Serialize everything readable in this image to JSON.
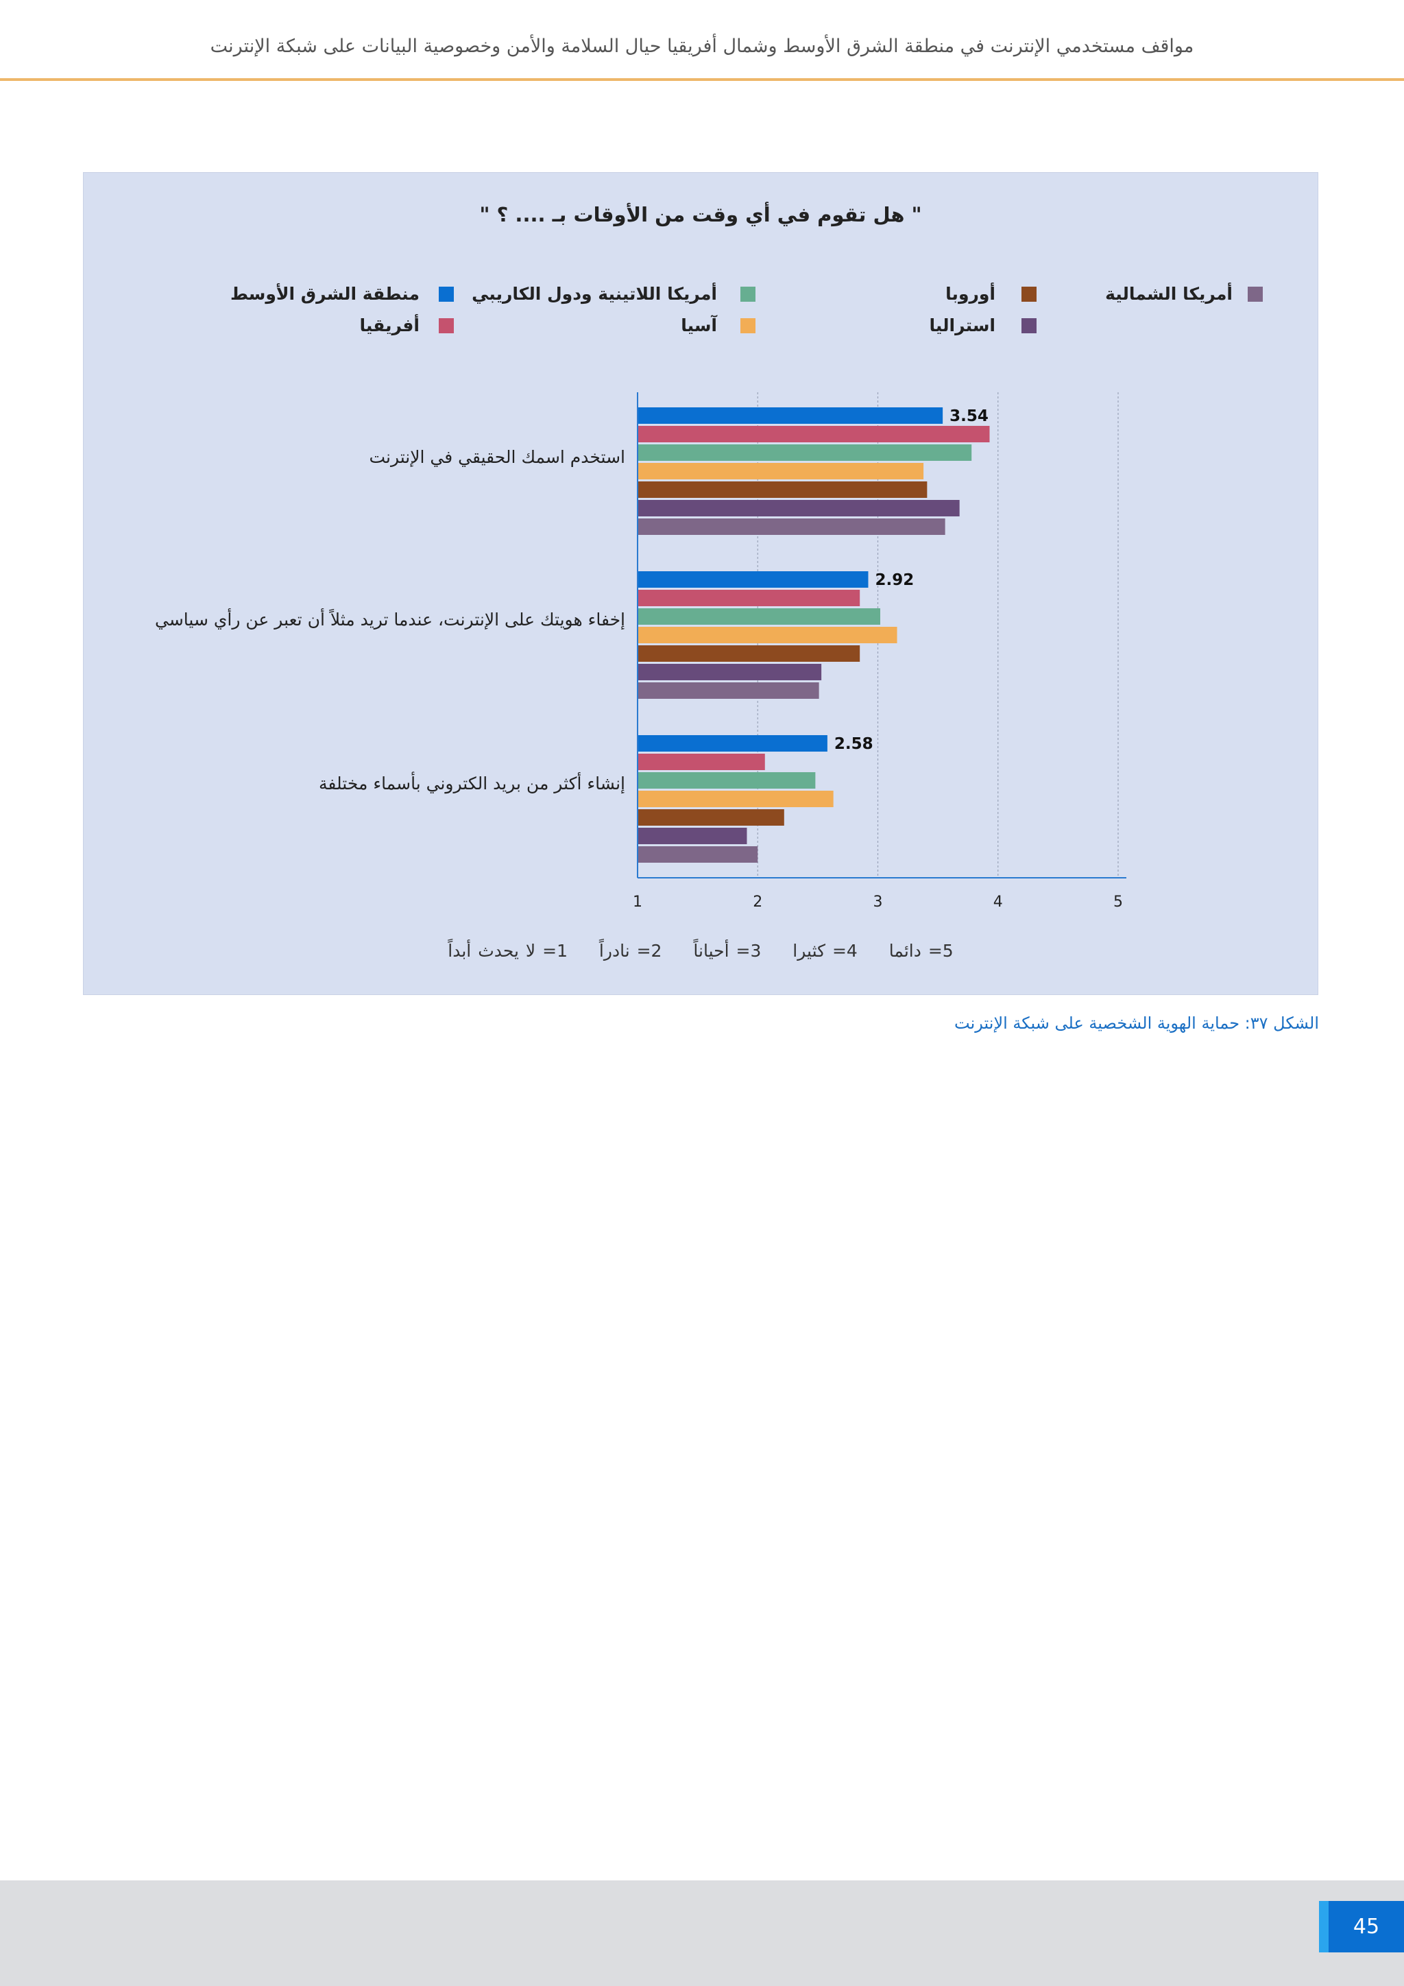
{
  "header": {
    "title": "مواقف مستخدمي الإنترنت في منطقة الشرق الأوسط وشمال أفريقيا حيال السلامة والأمن وخصوصية البيانات على شبكة الإنترنت"
  },
  "chart_data": {
    "type": "bar",
    "orientation": "horizontal",
    "title": "\" هل تقوم في أي وقت من الأوقات بـ .... ؟ \"",
    "categories": [
      "استخدم اسمك الحقيقي في الإنترنت",
      "إخفاء هويتك على الإنترنت، عندما تريد مثلاً أن تعبر عن رأي سياسي",
      "إنشاء أكثر من بريد الكتروني بأسماء مختلفة"
    ],
    "series": [
      {
        "name": "منطقة الشرق الأوسط",
        "color": "#0a6fd1",
        "values": [
          3.54,
          2.92,
          2.58
        ],
        "labels": [
          "3.54",
          "2.92",
          "2.58"
        ]
      },
      {
        "name": "أفريقيا",
        "color": "#c5526e",
        "values": [
          3.93,
          2.85,
          2.06
        ]
      },
      {
        "name": "أمريكا اللاتينية ودول الكاريبي",
        "color": "#67ae91",
        "values": [
          3.78,
          3.02,
          2.48
        ]
      },
      {
        "name": "آسيا",
        "color": "#f2ad55",
        "values": [
          3.38,
          3.16,
          2.63
        ]
      },
      {
        "name": "أوروبا",
        "color": "#8d4a1f",
        "values": [
          3.41,
          2.85,
          2.22
        ]
      },
      {
        "name": "استراليا",
        "color": "#674b7b",
        "values": [
          3.68,
          2.53,
          1.91
        ]
      },
      {
        "name": "أمريكا الشمالية",
        "color": "#7e6788",
        "values": [
          3.56,
          2.51,
          2.0
        ]
      }
    ],
    "xlim": [
      1,
      5
    ],
    "xticks": [
      "1",
      "2",
      "3",
      "4",
      "5"
    ],
    "grid": true,
    "legend_position": "top",
    "scale_note": [
      "5= دائما",
      "4= كثيرا",
      "3= أحياناً",
      "2= نادراً",
      "1= لا يحدث أبداً"
    ]
  },
  "caption": "الشكل ٣٧: حماية الهوية الشخصية على شبكة الإنترنت",
  "footer": {
    "page_number": "45"
  }
}
